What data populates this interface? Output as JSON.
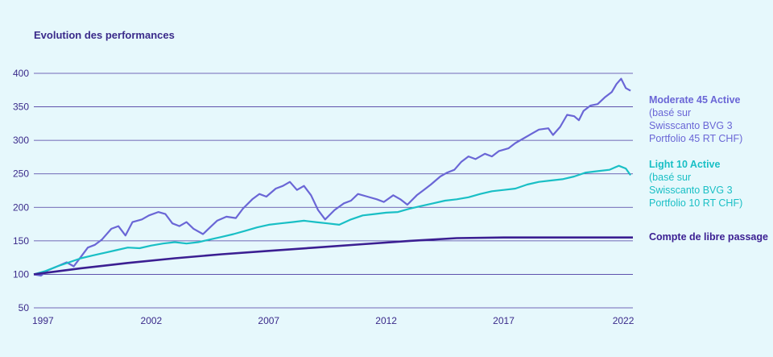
{
  "chart_title": "Evolution des performances",
  "chart_data": {
    "type": "line",
    "title": "Evolution des performances",
    "xlim": [
      1997,
      2022.5
    ],
    "ylim": [
      50,
      400
    ],
    "y_ticks": [
      50,
      100,
      150,
      200,
      250,
      300,
      350,
      400
    ],
    "x_ticks": [
      "1997",
      "2002",
      "2007",
      "2012",
      "2017",
      "2022"
    ],
    "x_tick_values": [
      1997,
      2002,
      2007,
      2012,
      2017,
      2022
    ],
    "grid": true,
    "legend_placement": "right",
    "series": [
      {
        "name": "Moderate 45 Active",
        "description": "(basé sur\nSwisscanto BVG 3\nPortfolio 45 RT CHF)",
        "color": "#6a66d6",
        "x": [
          1997.0,
          1997.3,
          1997.6,
          1998.0,
          1998.4,
          1998.7,
          1999.0,
          1999.3,
          1999.6,
          1999.9,
          2000.3,
          2000.6,
          2000.9,
          2001.2,
          2001.6,
          2001.9,
          2002.3,
          2002.6,
          2002.9,
          2003.2,
          2003.5,
          2003.8,
          2004.2,
          2004.5,
          2004.8,
          2005.2,
          2005.6,
          2005.9,
          2006.3,
          2006.6,
          2006.9,
          2007.3,
          2007.6,
          2007.9,
          2008.2,
          2008.5,
          2008.8,
          2009.1,
          2009.4,
          2009.8,
          2010.2,
          2010.5,
          2010.8,
          2011.2,
          2011.6,
          2011.9,
          2012.3,
          2012.6,
          2012.9,
          2013.3,
          2013.6,
          2013.9,
          2014.3,
          2014.6,
          2014.9,
          2015.2,
          2015.5,
          2015.8,
          2016.2,
          2016.5,
          2016.8,
          2017.2,
          2017.5,
          2017.8,
          2018.2,
          2018.5,
          2018.9,
          2019.1,
          2019.4,
          2019.7,
          2020.0,
          2020.2,
          2020.4,
          2020.7,
          2021.0,
          2021.3,
          2021.6,
          2021.8,
          2022.0,
          2022.2,
          2022.4
        ],
        "values": [
          100,
          98,
          106,
          112,
          118,
          112,
          126,
          140,
          144,
          152,
          168,
          172,
          158,
          178,
          182,
          188,
          193,
          190,
          176,
          172,
          178,
          168,
          160,
          170,
          180,
          186,
          184,
          198,
          212,
          220,
          216,
          228,
          232,
          238,
          226,
          232,
          218,
          196,
          182,
          196,
          206,
          210,
          220,
          216,
          212,
          208,
          218,
          212,
          204,
          218,
          226,
          234,
          246,
          252,
          256,
          268,
          276,
          272,
          280,
          276,
          284,
          288,
          296,
          302,
          310,
          316,
          318,
          308,
          320,
          338,
          336,
          330,
          344,
          352,
          354,
          364,
          372,
          384,
          392,
          378,
          374
        ]
      },
      {
        "name": "Light 10 Active",
        "description": "(basé sur\nSwisscanto BVG 3\nPortfolio 10 RT CHF)",
        "color": "#19bfc5",
        "x": [
          1997.0,
          1997.5,
          1998.0,
          1998.5,
          1999.0,
          1999.5,
          2000.0,
          2000.5,
          2001.0,
          2001.5,
          2002.0,
          2002.5,
          2003.0,
          2003.5,
          2004.0,
          2004.5,
          2005.0,
          2005.5,
          2006.0,
          2006.5,
          2007.0,
          2007.5,
          2008.0,
          2008.5,
          2009.0,
          2009.5,
          2010.0,
          2010.5,
          2011.0,
          2011.5,
          2012.0,
          2012.5,
          2013.0,
          2013.5,
          2014.0,
          2014.5,
          2015.0,
          2015.5,
          2016.0,
          2016.5,
          2017.0,
          2017.5,
          2018.0,
          2018.5,
          2019.0,
          2019.5,
          2020.0,
          2020.5,
          2021.0,
          2021.5,
          2021.9,
          2022.2,
          2022.4
        ],
        "values": [
          100,
          105,
          112,
          118,
          124,
          128,
          132,
          136,
          140,
          139,
          143,
          146,
          148,
          146,
          148,
          152,
          156,
          160,
          165,
          170,
          174,
          176,
          178,
          180,
          178,
          176,
          174,
          182,
          188,
          190,
          192,
          193,
          198,
          202,
          206,
          210,
          212,
          215,
          220,
          224,
          226,
          228,
          234,
          238,
          240,
          242,
          246,
          252,
          254,
          256,
          262,
          258,
          248
        ]
      },
      {
        "name": "Compte de libre passage",
        "description": "",
        "color": "#3b1f92",
        "x": [
          1997.0,
          1999.0,
          2001.0,
          2003.0,
          2005.0,
          2007.0,
          2009.0,
          2011.0,
          2013.0,
          2015.0,
          2017.0,
          2019.0,
          2021.0,
          2022.5
        ],
        "values": [
          100,
          109,
          117,
          124,
          130,
          135,
          140,
          145,
          150,
          154,
          155,
          155,
          155,
          155
        ]
      }
    ]
  }
}
